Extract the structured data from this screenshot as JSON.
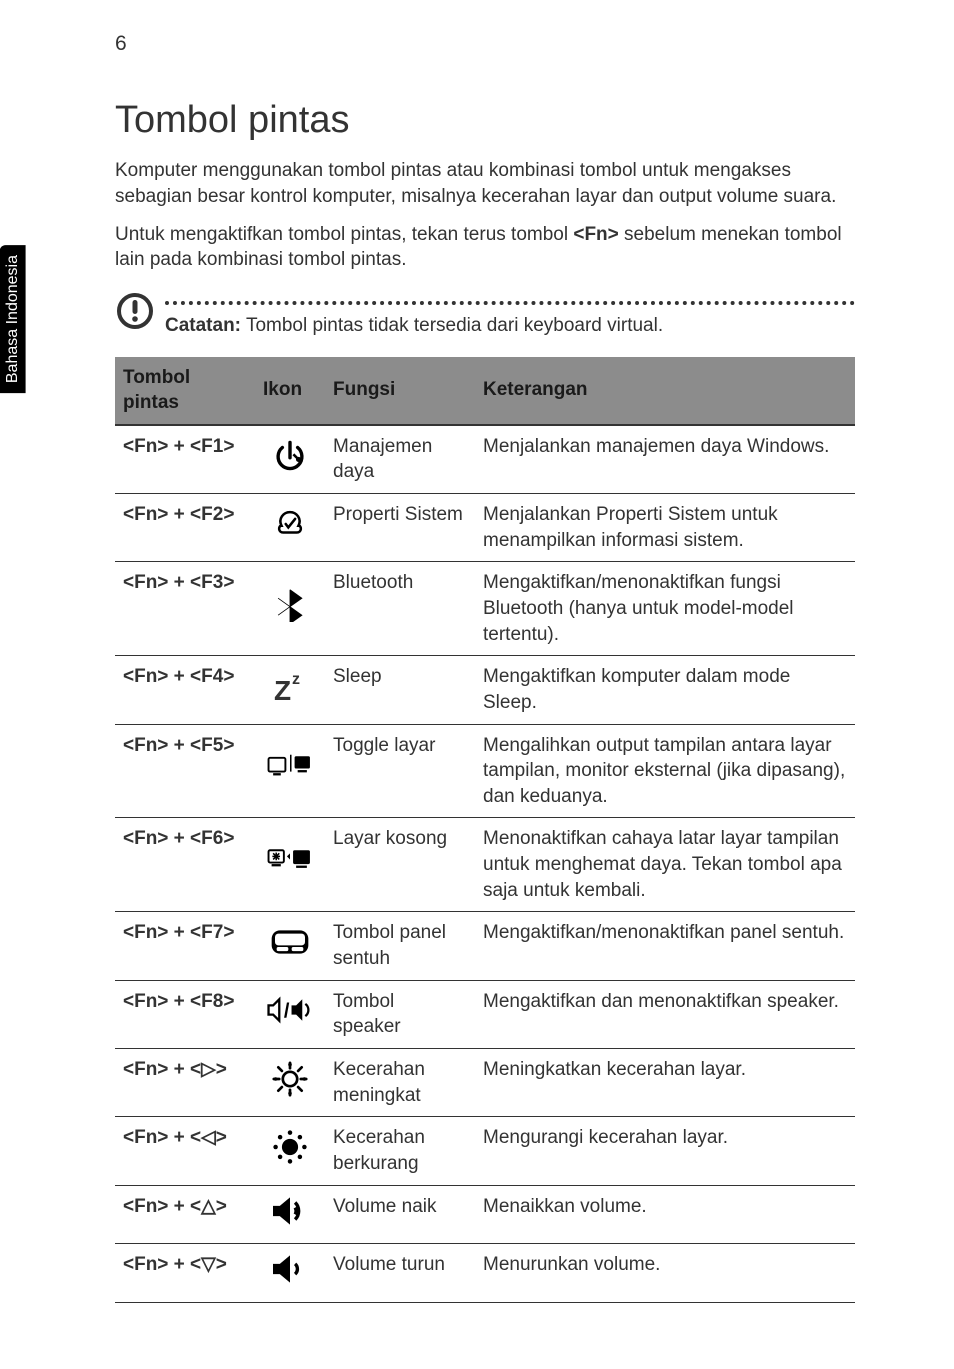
{
  "page_number": "6",
  "side_tab": "Bahasa\nIndonesia",
  "heading": "Tombol pintas",
  "paragraph1": "Komputer menggunakan tombol pintas atau kombinasi tombol untuk mengakses sebagian besar kontrol komputer, misalnya kecerahan layar dan output volume suara.",
  "paragraph2_pre": "Untuk mengaktifkan tombol pintas, tekan terus tombol ",
  "paragraph2_bold": "<Fn>",
  "paragraph2_post": " sebelum menekan tombol lain pada kombinasi tombol pintas.",
  "note_label": "Catatan:",
  "note_text": " Tombol pintas tidak tersedia dari keyboard virtual.",
  "table": {
    "headers": {
      "col1": "Tombol pintas",
      "col2": "Ikon",
      "col3": "Fungsi",
      "col4": "Keterangan"
    },
    "rows": [
      {
        "hotkey": "<Fn> + <F1>",
        "icon": "power-mgmt-icon",
        "func": "Manajemen daya",
        "desc": "Menjalankan manajemen daya Windows."
      },
      {
        "hotkey": "<Fn> + <F2>",
        "icon": "system-properties-icon",
        "func": "Properti Sistem",
        "desc": "Menjalankan Properti Sistem untuk menampilkan informasi sistem."
      },
      {
        "hotkey": "<Fn> + <F3>",
        "icon": "bluetooth-icon",
        "func": "Bluetooth",
        "desc": "Mengaktifkan/menonaktifkan fungsi Bluetooth (hanya untuk model-model tertentu)."
      },
      {
        "hotkey": "<Fn> + <F4>",
        "icon": "sleep-icon",
        "func": "Sleep",
        "desc": "Mengaktifkan komputer dalam mode Sleep."
      },
      {
        "hotkey": "<Fn> + <F5>",
        "icon": "display-toggle-icon",
        "func": "Toggle layar",
        "desc": "Mengalihkan output tampilan antara layar tampilan, monitor eksternal (jika dipasang), dan keduanya."
      },
      {
        "hotkey": "<Fn> + <F6>",
        "icon": "blank-screen-icon",
        "func": "Layar kosong",
        "desc": "Menonaktifkan cahaya latar layar tampilan untuk menghemat daya. Tekan tombol apa saja untuk kembali."
      },
      {
        "hotkey": "<Fn> + <F7>",
        "icon": "touchpad-icon",
        "func": "Tombol panel sentuh",
        "desc": "Mengaktifkan/menonaktifkan panel sentuh."
      },
      {
        "hotkey": "<Fn> + <F8>",
        "icon": "speaker-icon",
        "func": "Tombol speaker",
        "desc": "Mengaktifkan dan menonaktifkan speaker."
      },
      {
        "hotkey": "<Fn> + <▷>",
        "icon": "brightness-up-icon",
        "func": "Kecerahan meningkat",
        "desc": "Meningkatkan kecerahan layar."
      },
      {
        "hotkey": "<Fn> + <◁>",
        "icon": "brightness-down-icon",
        "func": "Kecerahan berkurang",
        "desc": "Mengurangi kecerahan layar."
      },
      {
        "hotkey": "<Fn> + <△>",
        "icon": "volume-up-icon",
        "func": "Volume naik",
        "desc": "Menaikkan volume."
      },
      {
        "hotkey": "<Fn> + <▽>",
        "icon": "volume-down-icon",
        "func": "Volume turun",
        "desc": "Menurunkan volume."
      }
    ]
  },
  "colors": {
    "header_bg": "#8c8c8c",
    "text": "#333333",
    "border": "#333333"
  }
}
